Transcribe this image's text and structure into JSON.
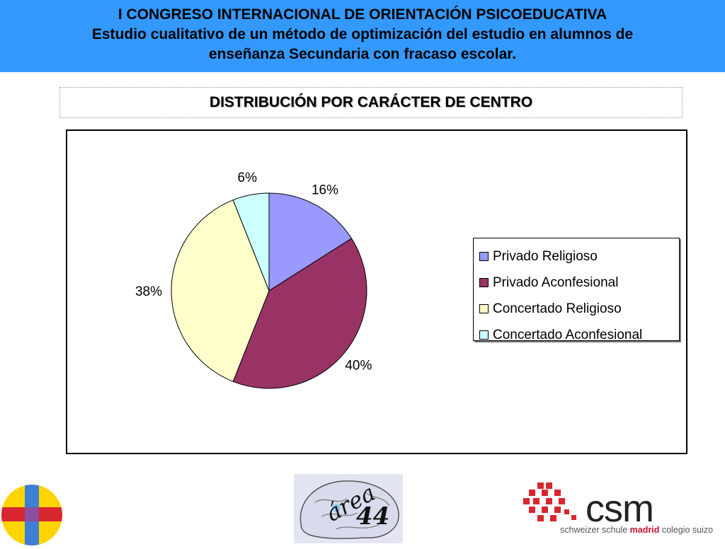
{
  "header": {
    "line1": "I CONGRESO INTERNACIONAL DE ORIENTACIÓN PSICOEDUCATIVA",
    "line2": "Estudio cualitativo de un método de optimización del estudio en alumnos de",
    "line3": "enseñanza Secundaria con fracaso escolar."
  },
  "chart_data": {
    "type": "pie",
    "title": "DISTRIBUCIÓN POR CARÁCTER DE CENTRO",
    "categories": [
      "Privado Religioso",
      "Privado Aconfesional",
      "Concertado Religioso",
      "Concertado Aconfesional"
    ],
    "values": [
      16,
      40,
      38,
      6
    ],
    "labels": [
      "16%",
      "40%",
      "38%",
      "6%"
    ],
    "colors": [
      "#9999ff",
      "#993366",
      "#ffffcc",
      "#ccffff"
    ],
    "legend_position": "right"
  },
  "footer": {
    "center_logo_word": "área",
    "center_logo_number": "44",
    "right_logo_word": "csm",
    "right_logo_tag_pre": "schweizer schule",
    "right_logo_tag_hl": "madrid",
    "right_logo_tag_post": "colegio suizo"
  }
}
